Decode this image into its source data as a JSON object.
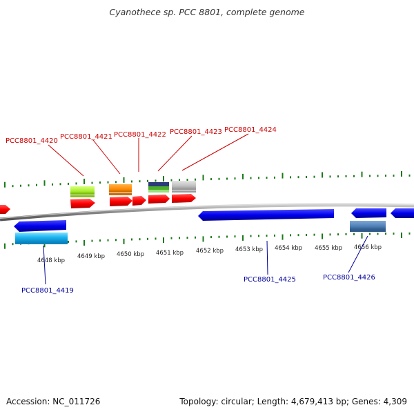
{
  "header": {
    "title": "Cyanothece sp. PCC 8801, complete genome"
  },
  "footer": {
    "accession": "Accession: NC_011726",
    "topology": "Topology: circular; Length: 4,679,413 bp; Genes: 4,309"
  },
  "colors": {
    "forward_gene_label": "#cc0000",
    "reverse_gene_label": "#000099",
    "tick": "#1a7a1a",
    "backbone": "#888888"
  },
  "scale": {
    "ticks": [
      {
        "label": "4648 kbp"
      },
      {
        "label": "4649 kbp"
      },
      {
        "label": "4650 kbp"
      },
      {
        "label": "4651 kbp"
      },
      {
        "label": "4652 kbp"
      },
      {
        "label": "4653 kbp"
      },
      {
        "label": "4654 kbp"
      },
      {
        "label": "4655 kbp"
      },
      {
        "label": "4656 kbp"
      }
    ]
  },
  "gene_labels": {
    "forward": [
      {
        "name": "PCC8801_4420"
      },
      {
        "name": "PCC8801_4421"
      },
      {
        "name": "PCC8801_4422"
      },
      {
        "name": "PCC8801_4423"
      },
      {
        "name": "PCC8801_4424"
      }
    ],
    "reverse": [
      {
        "name": "PCC8801_4419"
      },
      {
        "name": "PCC8801_4425"
      },
      {
        "name": "PCC8801_4426"
      }
    ]
  }
}
